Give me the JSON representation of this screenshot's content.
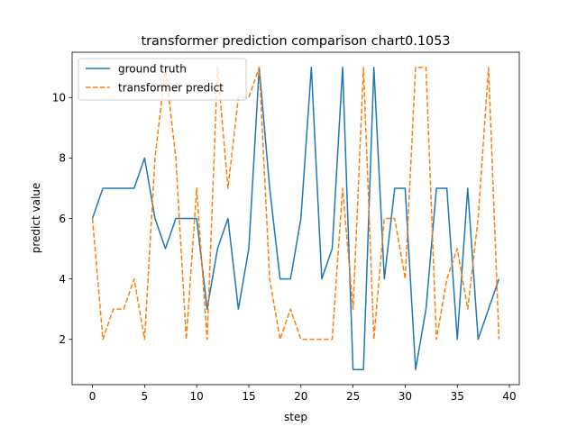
{
  "chart_data": {
    "type": "line",
    "title": "transformer prediction comparison chart0.1053",
    "xlabel": "step",
    "ylabel": "predict value",
    "xlim": [
      -1.95,
      40.95
    ],
    "ylim": [
      0.5,
      11.5
    ],
    "xticks": [
      0,
      5,
      10,
      15,
      20,
      25,
      30,
      35,
      40
    ],
    "yticks": [
      2,
      4,
      6,
      8,
      10
    ],
    "grid": false,
    "legend": "top-left",
    "x": [
      0,
      1,
      2,
      3,
      4,
      5,
      6,
      7,
      8,
      9,
      10,
      11,
      12,
      13,
      14,
      15,
      16,
      17,
      18,
      19,
      20,
      21,
      22,
      23,
      24,
      25,
      26,
      27,
      28,
      29,
      30,
      31,
      32,
      33,
      34,
      35,
      36,
      37,
      38,
      39
    ],
    "series": [
      {
        "name": "ground truth",
        "color": "#1f77b4",
        "style": "solid",
        "values": [
          6,
          7,
          7,
          7,
          7,
          8,
          6,
          5,
          6,
          6,
          6,
          3,
          5,
          6,
          3,
          5,
          11,
          7,
          4,
          4,
          6,
          11,
          4,
          5,
          11,
          1,
          1,
          11,
          4,
          7,
          7,
          1,
          3,
          7,
          7,
          2,
          7,
          2,
          3,
          4
        ]
      },
      {
        "name": "transformer predict",
        "color": "#ff7f0e",
        "style": "dashed",
        "values": [
          6,
          2,
          3,
          3,
          4,
          2,
          8,
          11,
          8,
          2,
          7,
          2,
          11,
          7,
          10,
          10,
          11,
          4,
          2,
          3,
          2,
          2,
          2,
          2,
          7,
          3,
          11,
          2,
          6,
          6,
          4,
          11,
          11,
          2,
          4,
          5,
          3,
          6,
          11,
          2
        ]
      }
    ]
  }
}
